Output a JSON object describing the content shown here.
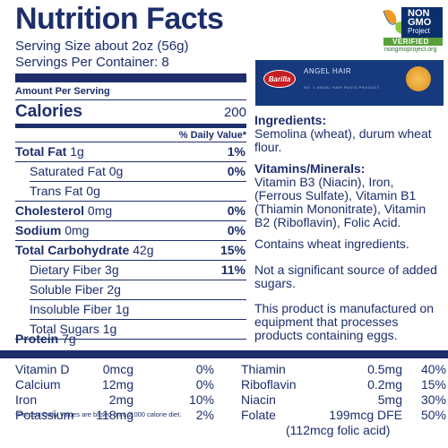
{
  "title": "Nutrition Facts",
  "serving_size": "Serving Size about 2oz (56g)",
  "servings_per_container": "Servings Per Container: 8",
  "amount_per_serving": "Amount Per Serving",
  "calories_label": "Calories",
  "calories_value": "200",
  "daily_value_header": "% Daily Value*",
  "nutrients": [
    {
      "label": "Total Fat",
      "amount": "1g",
      "dv": "1%"
    },
    {
      "label": "Saturated Fat",
      "amount": "0g",
      "dv": "0%"
    },
    {
      "label": "Trans Fat",
      "amount": "0g",
      "dv": ""
    },
    {
      "label": "Cholesterol",
      "amount": "0mg",
      "dv": "0%"
    },
    {
      "label": "Sodium",
      "amount": "0mg",
      "dv": "0%"
    },
    {
      "label": "Total Carbohydrate",
      "amount": "42g",
      "dv": "15%"
    },
    {
      "label": "Dietary Fiber",
      "amount": "3g",
      "dv": "11%"
    },
    {
      "label": "Soluble Fiber",
      "amount": "2g",
      "dv": ""
    },
    {
      "label": "Insoluble Fiber",
      "amount": "1g",
      "dv": ""
    },
    {
      "label": "Total Sugars",
      "amount": "1g",
      "dv": ""
    },
    {
      "label": "Protein",
      "amount": "7g",
      "dv": ""
    }
  ],
  "badge": {
    "line1": "NON",
    "line2": "GMO",
    "line3": "Project",
    "verified": "VERIFIED",
    "url": "nongmoproject.org"
  },
  "package": {
    "brand": "Barilla",
    "product": "ANGEL HAIR",
    "fine_print": "NO. 1 ANGEL HAIR PASTA PRODUCT"
  },
  "ingredients_heading": "Ingredients:",
  "ingredients_text": "Semolina (wheat), durum wheat flour.",
  "vitamins_heading": "Vitamins/Minerals:",
  "vitamins_text": "Vitamin B3 (Niacin), Iron, (Ferrous Sulfate), Vitamin B1 (Thiamin Mononitrate), Vitamin B2 (Riboflavin), Folic Acid.",
  "contains": "Contains wheat ingredients.",
  "sugars_note": "Not a significant source of added sugars.",
  "facility_note": "This product is manufactured on equipment that processes products containing eggs.",
  "vitamins_table_left": [
    {
      "name": "Vitamin D",
      "amount": "0mcg",
      "dv": "0%"
    },
    {
      "name": "Calcium",
      "amount": "12mg",
      "dv": "0%"
    },
    {
      "name": "Iron",
      "amount": "2mg",
      "dv": "10%"
    },
    {
      "name": "Potassium",
      "amount": "118mg",
      "dv": "2%"
    }
  ],
  "vitamins_table_right": [
    {
      "name": "Thiamin",
      "amount": "0.5mg",
      "dv": "40%"
    },
    {
      "name": "Riboflavin",
      "amount": "0.2mg",
      "dv": "15%"
    },
    {
      "name": "Niacin",
      "amount": "5mg",
      "dv": "30%"
    },
    {
      "name": "Folate",
      "amount": "199mcg DFE",
      "dv": "50%"
    }
  ],
  "folic_acid": "(112mcg folic acid)",
  "footnote": "*Percent Daily Values are based on a 2,000 calorie diet."
}
